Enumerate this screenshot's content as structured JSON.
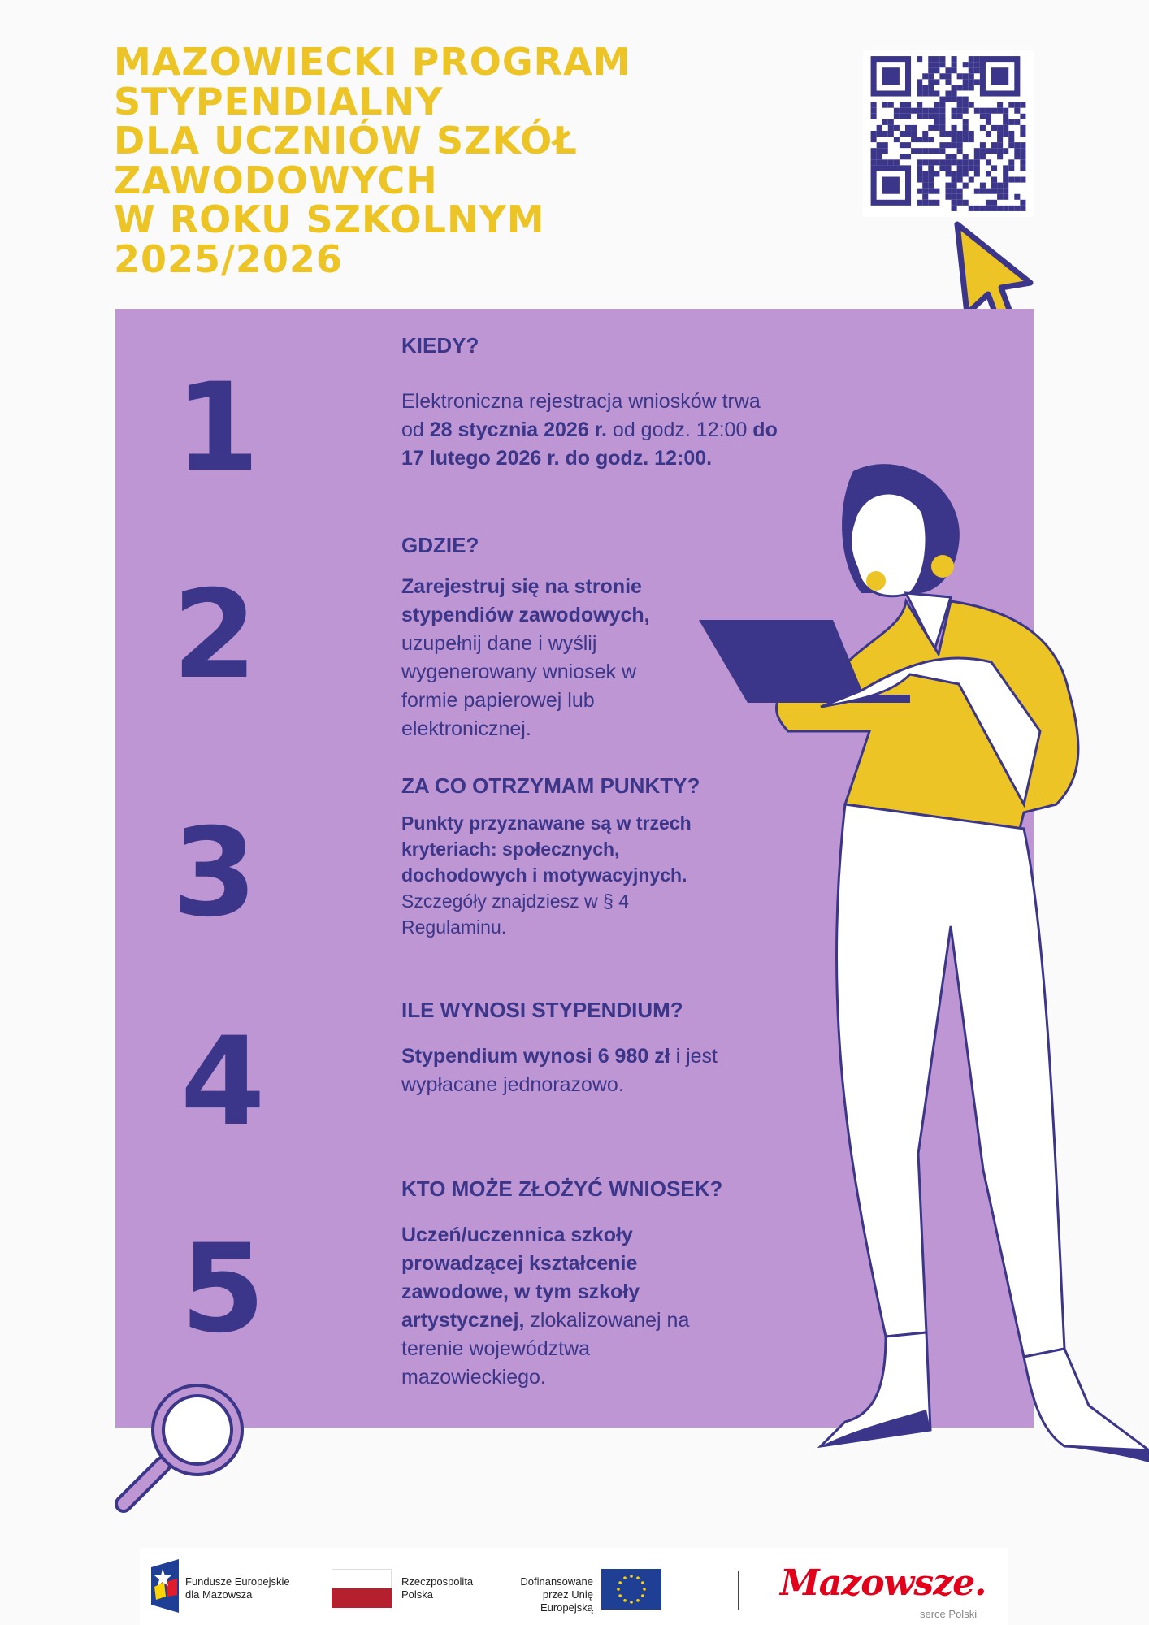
{
  "title_lines": [
    "MAZOWIECKI PROGRAM",
    "STYPENDIALNY",
    "DLA UCZNIÓW SZKÓŁ",
    "ZAWODOWYCH",
    "W ROKU SZKOLNYM",
    "2025/2026"
  ],
  "colors": {
    "yellow": "#ecc425",
    "purple": "#bd96d3",
    "navy": "#3b3689"
  },
  "sections": [
    {
      "number": "1",
      "heading": "KIEDY?",
      "parts": [
        [
          "n",
          "Elektroniczna rejestracja wniosków trwa od "
        ],
        [
          "b",
          "28 stycznia 2026 r."
        ],
        [
          "n",
          " od godz. 12:00 "
        ],
        [
          "b",
          "do 17 lutego 2026 r. do godz. 12:00."
        ]
      ]
    },
    {
      "number": "2",
      "heading": "GDZIE?",
      "parts": [
        [
          "b",
          "Zarejestruj się na stronie stypendiów zawodowych,"
        ],
        [
          "n",
          " uzupełnij dane i wyślij wygenerowany wniosek w formie papierowej lub elektronicznej."
        ]
      ]
    },
    {
      "number": "3",
      "heading": "ZA CO OTRZYMAM PUNKTY?",
      "parts": [
        [
          "b",
          "Punkty przyznawane są w trzech kryteriach: społecznych, dochodowych i motywacyjnych."
        ],
        [
          "n",
          " Szczegóły znajdziesz w § 4 Regulaminu."
        ]
      ]
    },
    {
      "number": "4",
      "heading": "ILE WYNOSI STYPENDIUM?",
      "parts": [
        [
          "b",
          "Stypendium wynosi 6 980 zł"
        ],
        [
          "n",
          " i jest wypłacane jednorazowo."
        ]
      ]
    },
    {
      "number": "5",
      "heading": "KTO MOŻE ZŁOŻYĆ WNIOSEK?",
      "parts": [
        [
          "b",
          "Uczeń/uczennica szkoły prowadzącej kształcenie zawodowe, w tym szkoły artystycznej,"
        ],
        [
          "n",
          " zlokalizowanej na terenie województwa mazowieckiego."
        ]
      ]
    }
  ],
  "footer": {
    "fe": "Fundusze Europejskie dla Mazowsza",
    "rp": "Rzeczpospolita Polska",
    "eu": "Dofinansowane przez Unię Europejską",
    "mazowsze": "Mazowsze.",
    "mazowsze_sub": "serce Polski"
  }
}
